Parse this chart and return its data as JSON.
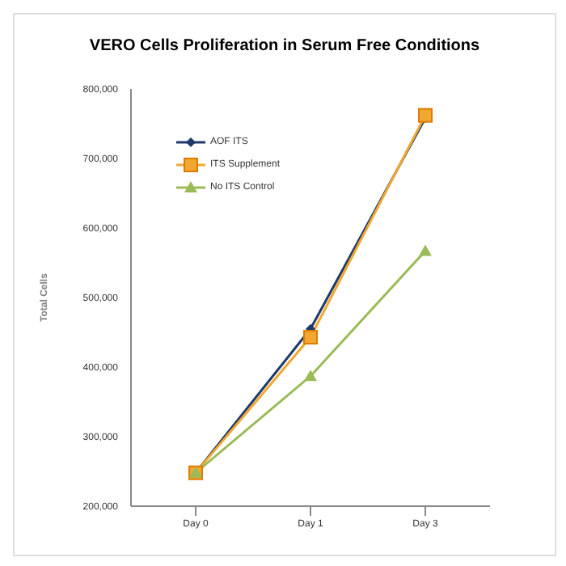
{
  "chart_data": {
    "type": "line",
    "title": "VERO Cells Proliferation in Serum Free Conditions",
    "ylabel": "Total Cells",
    "categories": [
      "Day 0",
      "Day 1",
      "Day 3"
    ],
    "ylim": [
      200000,
      800000
    ],
    "yticks": [
      {
        "value": 200000,
        "label": "200,000"
      },
      {
        "value": 300000,
        "label": "300,000"
      },
      {
        "value": 400000,
        "label": "400,000"
      },
      {
        "value": 500000,
        "label": "500,000"
      },
      {
        "value": 600000,
        "label": "600,000"
      },
      {
        "value": 700000,
        "label": "700,000"
      },
      {
        "value": 800000,
        "label": "800,000"
      }
    ],
    "grid": false,
    "legend": "top left",
    "series": [
      {
        "name": "AOF ITS",
        "color": "#1f3a68",
        "marker": "diamond",
        "values": [
          248000,
          455000,
          758000
        ]
      },
      {
        "name": "ITS Supplement",
        "color": "#f0a830",
        "marker": "square",
        "values": [
          248000,
          443000,
          762000
        ]
      },
      {
        "name": "No ITS Control",
        "color": "#9bbb59",
        "marker": "triangle",
        "values": [
          248000,
          387000,
          567000
        ]
      }
    ]
  }
}
